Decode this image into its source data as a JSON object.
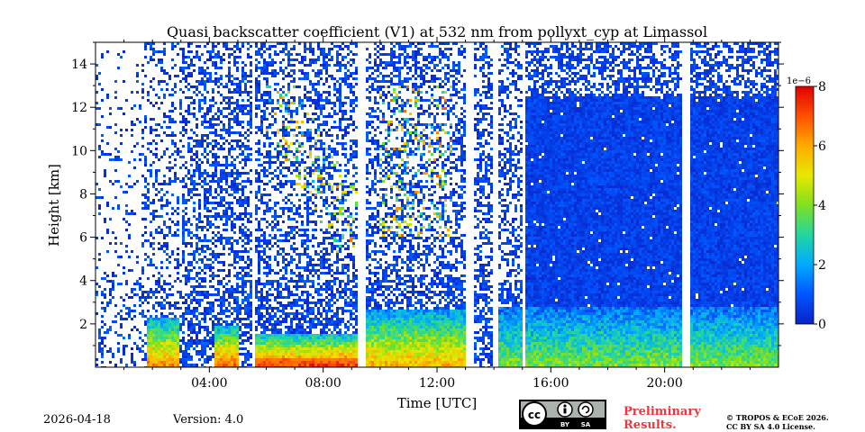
{
  "chart_data": {
    "type": "heatmap",
    "title": "Quasi backscatter coefficient (V1) at 532 nm from pollyxt_cyp at Limassol",
    "xlabel": "Time [UTC]",
    "ylabel": "Height [km]",
    "x_range_hours": [
      0,
      24
    ],
    "ylim": [
      0,
      15
    ],
    "x_ticks": [
      {
        "hour": 4,
        "label": "04:00"
      },
      {
        "hour": 8,
        "label": "08:00"
      },
      {
        "hour": 12,
        "label": "12:00"
      },
      {
        "hour": 16,
        "label": "16:00"
      },
      {
        "hour": 20,
        "label": "20:00"
      }
    ],
    "y_ticks": [
      {
        "value": 2,
        "label": "2"
      },
      {
        "value": 4,
        "label": "4"
      },
      {
        "value": 6,
        "label": "6"
      },
      {
        "value": 8,
        "label": "8"
      },
      {
        "value": 10,
        "label": "10"
      },
      {
        "value": 12,
        "label": "12"
      },
      {
        "value": 14,
        "label": "14"
      }
    ],
    "colorbar": {
      "min": 0,
      "max": 8,
      "scale_label": "1e−6",
      "ticks": [
        {
          "value": 0,
          "label": "0"
        },
        {
          "value": 2,
          "label": "2"
        },
        {
          "value": 4,
          "label": "4"
        },
        {
          "value": 6,
          "label": "6"
        },
        {
          "value": 8,
          "label": "8"
        }
      ],
      "colormap": [
        "#0a22c8",
        "#0055ff",
        "#00aaff",
        "#22d6a0",
        "#7fe020",
        "#e8e800",
        "#ffaa00",
        "#ff5000",
        "#e00000"
      ]
    },
    "gaps_hours": [
      [
        5.5,
        5.62
      ],
      [
        9.25,
        9.5
      ],
      [
        13.05,
        13.3
      ],
      [
        14.0,
        14.12
      ],
      [
        15.05,
        15.12
      ],
      [
        20.65,
        20.85
      ]
    ],
    "aerosol_layers": [
      {
        "start_hour": 1.8,
        "end_hour": 2.95,
        "top_km": 2.3,
        "peak": 6.5
      },
      {
        "start_hour": 4.2,
        "end_hour": 5.0,
        "top_km": 1.9,
        "peak": 7.0
      },
      {
        "start_hour": 5.62,
        "end_hour": 9.25,
        "top_km": 1.5,
        "peak": 7.5
      },
      {
        "start_hour": 9.5,
        "end_hour": 13.05,
        "top_km": 2.6,
        "peak": 6.0
      },
      {
        "start_hour": 14.12,
        "end_hour": 24.0,
        "top_km": 2.8,
        "peak": 4.0
      }
    ],
    "full_clear_region_hours": [
      15.12,
      24.0
    ]
  },
  "footer": {
    "date": "2026-04-18",
    "version": "Version: 4.0",
    "preliminary_line1": "Preliminary",
    "preliminary_line2": "Results.",
    "copyright_line1": "© TROPOS & ECoE 2026.",
    "copyright_line2": "CC BY SA 4.0 License.",
    "cc_by": "BY",
    "cc_sa": "SA"
  }
}
